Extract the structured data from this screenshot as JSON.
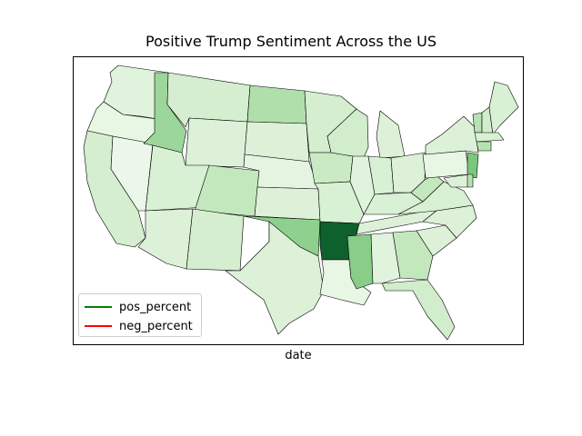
{
  "chart": {
    "title": "Positive Trump Sentiment Across the US",
    "xlabel": "date",
    "legend": [
      {
        "label": "pos_percent",
        "color": "#008000"
      },
      {
        "label": "neg_percent",
        "color": "#ff0000"
      }
    ],
    "legend_placement": "lower-left"
  },
  "chart_data": {
    "type": "choropleth",
    "title": "Positive Trump Sentiment Across the US",
    "xlabel": "date",
    "colormap": "Greens",
    "legend": [
      "pos_percent",
      "neg_percent"
    ],
    "states": [
      {
        "name": "Washington",
        "value": 0.12
      },
      {
        "name": "Oregon",
        "value": 0.08
      },
      {
        "name": "California",
        "value": 0.18
      },
      {
        "name": "Nevada",
        "value": 0.06
      },
      {
        "name": "Idaho",
        "value": 0.38
      },
      {
        "name": "Montana",
        "value": 0.18
      },
      {
        "name": "Wyoming",
        "value": 0.14
      },
      {
        "name": "Utah",
        "value": 0.16
      },
      {
        "name": "Arizona",
        "value": 0.14
      },
      {
        "name": "Colorado",
        "value": 0.26
      },
      {
        "name": "New Mexico",
        "value": 0.18
      },
      {
        "name": "North Dakota",
        "value": 0.32
      },
      {
        "name": "South Dakota",
        "value": 0.14
      },
      {
        "name": "Nebraska",
        "value": 0.1
      },
      {
        "name": "Kansas",
        "value": 0.14
      },
      {
        "name": "Oklahoma",
        "value": 0.42
      },
      {
        "name": "Texas",
        "value": 0.14
      },
      {
        "name": "Minnesota",
        "value": 0.18
      },
      {
        "name": "Iowa",
        "value": 0.24
      },
      {
        "name": "Missouri",
        "value": 0.16
      },
      {
        "name": "Arkansas",
        "value": 0.9
      },
      {
        "name": "Louisiana",
        "value": 0.08
      },
      {
        "name": "Wisconsin",
        "value": 0.2
      },
      {
        "name": "Illinois",
        "value": 0.12
      },
      {
        "name": "Michigan",
        "value": 0.14
      },
      {
        "name": "Indiana",
        "value": 0.16
      },
      {
        "name": "Ohio",
        "value": 0.14
      },
      {
        "name": "Kentucky",
        "value": 0.16
      },
      {
        "name": "Tennessee",
        "value": 0.14
      },
      {
        "name": "Mississippi",
        "value": 0.44
      },
      {
        "name": "Alabama",
        "value": 0.12
      },
      {
        "name": "Georgia",
        "value": 0.26
      },
      {
        "name": "Florida",
        "value": 0.2
      },
      {
        "name": "South Carolina",
        "value": 0.14
      },
      {
        "name": "North Carolina",
        "value": 0.14
      },
      {
        "name": "Virginia",
        "value": 0.16
      },
      {
        "name": "West Virginia",
        "value": 0.26
      },
      {
        "name": "Pennsylvania",
        "value": 0.08
      },
      {
        "name": "New York",
        "value": 0.14
      },
      {
        "name": "Vermont",
        "value": 0.3
      },
      {
        "name": "New Hampshire",
        "value": 0.2
      },
      {
        "name": "Maine",
        "value": 0.16
      },
      {
        "name": "Massachusetts",
        "value": 0.16
      },
      {
        "name": "Connecticut",
        "value": 0.3
      },
      {
        "name": "New Jersey",
        "value": 0.48
      },
      {
        "name": "Maryland",
        "value": 0.14
      },
      {
        "name": "Delaware",
        "value": 0.3
      }
    ]
  }
}
